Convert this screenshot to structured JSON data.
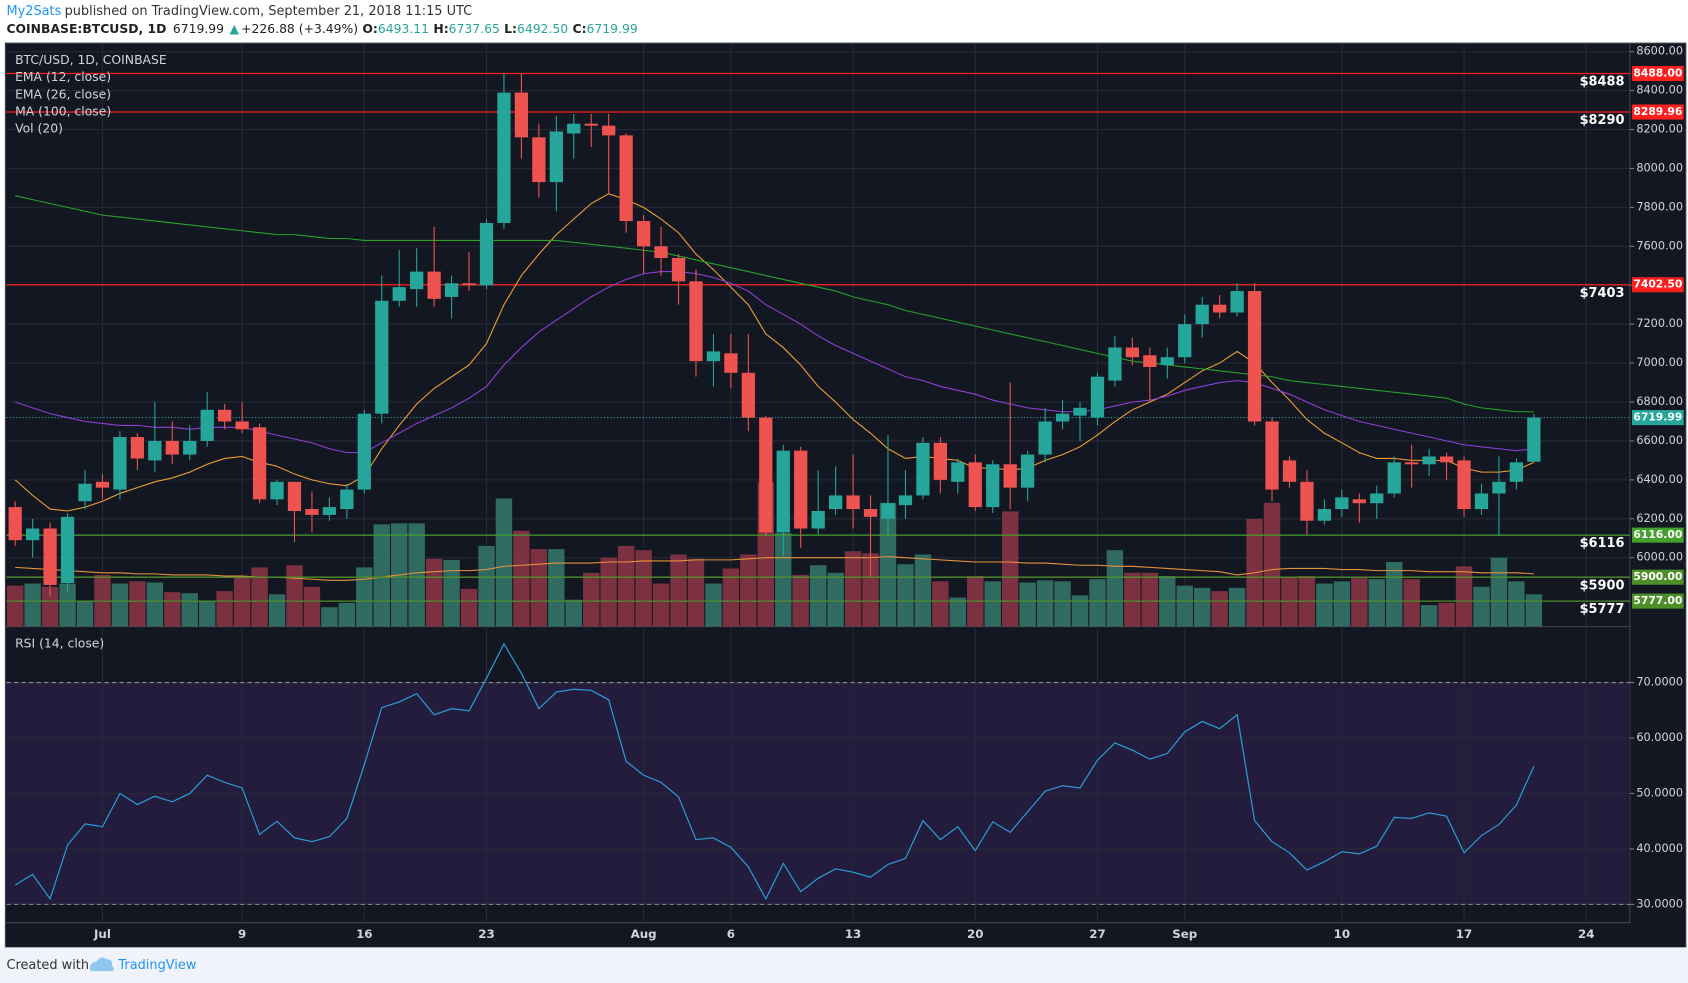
{
  "header": {
    "author": "My2Sats",
    "published": "published on TradingView.com, September 21, 2018 11:15 UTC",
    "symbol": "COINBASE:BTCUSD, 1D",
    "last": "6719.99",
    "arrow": "▲",
    "change": "+226.88 (+3.49%)",
    "o_label": "O:",
    "open": "6493.11",
    "h_label": "H:",
    "high": "6737.65",
    "l_label": "L:",
    "low": "6492.50",
    "c_label": "C:",
    "close": "6719.99"
  },
  "footer": {
    "created": "Created with",
    "brand": "TradingView"
  },
  "chart_data": {
    "type": "candlestick",
    "name": "BTC/USD, 1D, COINBASE",
    "up_color": "#26a69a",
    "down_color": "#ef5350",
    "categories": [
      null,
      null,
      null,
      null,
      null,
      "Jul",
      null,
      null,
      null,
      null,
      null,
      null,
      null,
      "9",
      null,
      null,
      null,
      null,
      null,
      null,
      "16",
      null,
      null,
      null,
      null,
      null,
      null,
      "23",
      null,
      null,
      null,
      null,
      null,
      null,
      null,
      null,
      "Aug",
      null,
      null,
      null,
      null,
      "6",
      null,
      null,
      null,
      null,
      null,
      null,
      "13",
      null,
      null,
      null,
      null,
      null,
      null,
      "20",
      null,
      null,
      null,
      null,
      null,
      null,
      "27",
      null,
      null,
      null,
      null,
      "Sep",
      null,
      null,
      null,
      null,
      null,
      null,
      null,
      null,
      "10",
      null,
      null,
      null,
      null,
      null,
      null,
      "17",
      null,
      null,
      null,
      null,
      null,
      null,
      "24",
      null,
      null
    ],
    "open": [
      6260,
      6090,
      6150,
      5870,
      6290,
      6390,
      6350,
      6620,
      6500,
      6600,
      6530,
      6600,
      6760,
      6700,
      6670,
      6300,
      6390,
      6250,
      6220,
      6250,
      6350,
      6740,
      7320,
      7380,
      7470,
      7340,
      7410,
      7400,
      7720,
      8390,
      8160,
      7930,
      8180,
      8230,
      8220,
      8170,
      7730,
      7600,
      7540,
      7420,
      7010,
      7050,
      6950,
      6720,
      6130,
      6550,
      6150,
      6250,
      6320,
      6250,
      6200,
      6270,
      6320,
      6590,
      6390,
      6490,
      6260,
      6480,
      6360,
      6530,
      6700,
      6730,
      6720,
      6910,
      7080,
      7040,
      6990,
      7030,
      7200,
      7300,
      7260,
      7370,
      6700,
      6500,
      6390,
      6190,
      6250,
      6300,
      6280,
      6330,
      6490,
      6480,
      6520,
      6500,
      6250,
      6330,
      6390,
      6493.11,
      null,
      null,
      null,
      null,
      null
    ],
    "high": [
      6290,
      6200,
      6180,
      6230,
      6450,
      6430,
      6650,
      6640,
      6800,
      6700,
      6680,
      6850,
      6790,
      6800,
      6690,
      6400,
      6390,
      6340,
      6310,
      6380,
      6760,
      7450,
      7580,
      7590,
      7700,
      7450,
      7570,
      7740,
      8490,
      8490,
      8230,
      8270,
      8280,
      8280,
      8280,
      8180,
      7760,
      7700,
      7560,
      7480,
      7150,
      7150,
      7150,
      6730,
      6580,
      6570,
      6450,
      6470,
      6530,
      6320,
      6630,
      6450,
      6620,
      6620,
      6510,
      6530,
      6500,
      6900,
      6550,
      6770,
      6810,
      6800,
      6950,
      7140,
      7130,
      7080,
      7080,
      7250,
      7340,
      7350,
      7410,
      7410,
      6720,
      6520,
      6450,
      6300,
      6350,
      6330,
      6370,
      6520,
      6580,
      6560,
      6540,
      6520,
      6380,
      6520,
      6510,
      6737.65,
      null,
      null,
      null,
      null,
      null
    ],
    "low": [
      6060,
      6000,
      5800,
      5820,
      6250,
      6300,
      6300,
      6450,
      6440,
      6480,
      6500,
      6570,
      6660,
      6640,
      6280,
      6270,
      6080,
      6130,
      6190,
      6200,
      6330,
      6690,
      7290,
      7290,
      7290,
      7230,
      7370,
      7380,
      7690,
      8050,
      7850,
      7780,
      8050,
      8110,
      7870,
      7670,
      7460,
      7450,
      7300,
      6930,
      6880,
      6870,
      6650,
      6110,
      6010,
      6050,
      6120,
      6220,
      6150,
      5900,
      6120,
      6200,
      6300,
      6330,
      6330,
      6240,
      6230,
      6250,
      6290,
      6490,
      6660,
      6600,
      6680,
      6880,
      6990,
      6800,
      6920,
      7000,
      7130,
      7230,
      7240,
      6680,
      6290,
      6360,
      6120,
      6170,
      6210,
      6180,
      6200,
      6310,
      6360,
      6420,
      6400,
      6210,
      6220,
      6110,
      6350,
      6492.5,
      null,
      null,
      null,
      null,
      null
    ],
    "close": [
      6090,
      6150,
      5860,
      6210,
      6380,
      6360,
      6620,
      6510,
      6600,
      6530,
      6600,
      6760,
      6700,
      6660,
      6300,
      6390,
      6240,
      6220,
      6260,
      6350,
      6740,
      7320,
      7390,
      7470,
      7330,
      7410,
      7400,
      7720,
      8390,
      8160,
      7930,
      8190,
      8230,
      8220,
      8170,
      7730,
      7600,
      7540,
      7420,
      7010,
      7060,
      6950,
      6720,
      6130,
      6550,
      6150,
      6240,
      6320,
      6250,
      6210,
      6280,
      6320,
      6590,
      6400,
      6490,
      6260,
      6480,
      6360,
      6530,
      6700,
      6740,
      6770,
      6930,
      7080,
      7030,
      6980,
      7030,
      7200,
      7300,
      7260,
      7370,
      6700,
      6350,
      6390,
      6190,
      6250,
      6310,
      6280,
      6330,
      6490,
      6480,
      6520,
      6490,
      6250,
      6330,
      6390,
      6490,
      6719.99,
      null,
      null,
      null,
      null,
      null
    ],
    "series": [
      {
        "name": "EMA (12, close)",
        "color": "#f0a030",
        "values": [
          6400,
          6320,
          6250,
          6240,
          6260,
          6290,
          6330,
          6360,
          6390,
          6410,
          6440,
          6480,
          6510,
          6520,
          6490,
          6470,
          6430,
          6400,
          6380,
          6370,
          6420,
          6560,
          6680,
          6790,
          6870,
          6930,
          6990,
          7100,
          7300,
          7450,
          7560,
          7660,
          7740,
          7820,
          7870,
          7840,
          7800,
          7740,
          7670,
          7560,
          7480,
          7390,
          7300,
          7150,
          7080,
          6990,
          6880,
          6800,
          6710,
          6640,
          6560,
          6510,
          6520,
          6510,
          6500,
          6460,
          6460,
          6450,
          6460,
          6500,
          6530,
          6570,
          6630,
          6700,
          6760,
          6800,
          6840,
          6900,
          6960,
          7000,
          7060,
          7000,
          6900,
          6810,
          6710,
          6640,
          6590,
          6540,
          6510,
          6510,
          6500,
          6500,
          6500,
          6460,
          6440,
          6440,
          6450,
          6490,
          null,
          null,
          null,
          null,
          null
        ]
      },
      {
        "name": "EMA (26, close)",
        "color": "#8e3fd8",
        "values": [
          6800,
          6770,
          6740,
          6720,
          6700,
          6690,
          6680,
          6680,
          6670,
          6670,
          6660,
          6670,
          6670,
          6670,
          6650,
          6630,
          6610,
          6590,
          6560,
          6540,
          6540,
          6590,
          6640,
          6690,
          6730,
          6770,
          6820,
          6880,
          6990,
          7080,
          7160,
          7220,
          7280,
          7340,
          7390,
          7430,
          7460,
          7470,
          7470,
          7460,
          7440,
          7410,
          7370,
          7300,
          7250,
          7200,
          7140,
          7090,
          7050,
          7010,
          6970,
          6930,
          6910,
          6880,
          6860,
          6840,
          6810,
          6790,
          6770,
          6760,
          6750,
          6750,
          6760,
          6780,
          6800,
          6810,
          6830,
          6860,
          6880,
          6900,
          6910,
          6900,
          6870,
          6840,
          6800,
          6760,
          6730,
          6700,
          6680,
          6660,
          6640,
          6620,
          6600,
          6580,
          6570,
          6560,
          6550,
          6560,
          null,
          null,
          null,
          null,
          null
        ]
      },
      {
        "name": "MA (100, close)",
        "color": "#27a32a",
        "values": [
          7860,
          7840,
          7820,
          7800,
          7780,
          7760,
          7750,
          7740,
          7730,
          7720,
          7710,
          7700,
          7690,
          7680,
          7670,
          7660,
          7660,
          7650,
          7640,
          7640,
          7630,
          7630,
          7630,
          7630,
          7630,
          7630,
          7630,
          7630,
          7630,
          7630,
          7630,
          7630,
          7620,
          7610,
          7600,
          7590,
          7580,
          7570,
          7550,
          7530,
          7510,
          7490,
          7470,
          7450,
          7430,
          7410,
          7390,
          7370,
          7340,
          7320,
          7300,
          7270,
          7250,
          7230,
          7210,
          7190,
          7170,
          7150,
          7130,
          7110,
          7090,
          7070,
          7050,
          7030,
          7010,
          7000,
          6990,
          6980,
          6970,
          6960,
          6950,
          6940,
          6930,
          6910,
          6900,
          6890,
          6880,
          6870,
          6860,
          6850,
          6840,
          6830,
          6820,
          6790,
          6770,
          6760,
          6750,
          6750,
          null,
          null,
          null,
          null,
          null
        ]
      }
    ],
    "volume": {
      "name": "Vol (20)",
      "up_color": "#2f6b61",
      "down_color": "#7b3140",
      "ma_color": "#e8923a",
      "values": [
        38,
        40,
        37,
        40,
        24,
        48,
        40,
        42,
        41,
        32,
        31,
        24,
        33,
        46,
        55,
        30,
        57,
        37,
        18,
        22,
        55,
        95,
        96,
        96,
        63,
        62,
        35,
        75,
        119,
        89,
        72,
        72,
        25,
        50,
        64,
        75,
        71,
        40,
        67,
        63,
        40,
        54,
        67,
        134,
        87,
        48,
        57,
        50,
        70,
        68,
        115,
        58,
        67,
        42,
        27,
        47,
        42,
        107,
        41,
        43,
        42,
        29,
        44,
        71,
        50,
        50,
        47,
        38,
        36,
        33,
        36,
        100,
        115,
        46,
        47,
        40,
        42,
        45,
        44,
        60,
        44,
        20,
        22,
        56,
        37,
        64,
        42,
        30,
        null,
        null,
        null,
        null,
        null
      ],
      "ma": [
        55,
        54,
        53,
        52,
        51,
        50,
        50,
        49,
        49,
        48,
        48,
        48,
        47,
        47,
        46,
        46,
        45,
        44,
        43,
        43,
        44,
        46,
        48,
        50,
        51,
        52,
        52,
        53,
        56,
        57,
        58,
        59,
        59,
        59,
        60,
        60,
        61,
        61,
        61,
        62,
        62,
        62,
        63,
        64,
        64,
        64,
        64,
        64,
        64,
        64,
        65,
        64,
        63,
        62,
        61,
        60,
        60,
        60,
        59,
        59,
        58,
        57,
        57,
        56,
        56,
        55,
        54,
        53,
        52,
        51,
        48,
        50,
        53,
        54,
        54,
        54,
        53,
        53,
        52,
        52,
        52,
        51,
        51,
        51,
        50,
        50,
        50,
        49,
        null,
        null,
        null,
        null,
        null
      ]
    },
    "ylim": [
      5646,
      8644
    ],
    "yticks": [
      {
        "value": 8600,
        "label": "8600.00"
      },
      {
        "value": 8400,
        "label": "8400.00"
      },
      {
        "value": 8200,
        "label": "8200.00"
      },
      {
        "value": 8000,
        "label": "8000.00"
      },
      {
        "value": 7800,
        "label": "7800.00"
      },
      {
        "value": 7600,
        "label": "7600.00"
      },
      {
        "value": 7400,
        "label": "7400.00"
      },
      {
        "value": 7200,
        "label": "7200.00"
      },
      {
        "value": 7000,
        "label": "7000.00"
      },
      {
        "value": 6800,
        "label": "6800.00"
      },
      {
        "value": 6600,
        "label": "6600.00"
      },
      {
        "value": 6400,
        "label": "6400.00"
      },
      {
        "value": 6200,
        "label": "6200.00"
      },
      {
        "value": 6000,
        "label": "6000.00"
      }
    ],
    "grid": true,
    "levels": [
      {
        "value": 8488,
        "label": "$8488",
        "tag": "8488.00",
        "color": "#ff1f1f"
      },
      {
        "value": 8289.96,
        "label": "$8290",
        "tag": "8289.96",
        "color": "#ff1f1f"
      },
      {
        "value": 7402.5,
        "label": "$7403",
        "tag": "7402.50",
        "color": "#ff1f1f"
      },
      {
        "value": 6116,
        "label": "$6116",
        "tag": "6116.00",
        "color": "#43a02c"
      },
      {
        "value": 5900,
        "label": "$5900",
        "tag": "5900.00",
        "color": "#4f8f2a"
      },
      {
        "value": 5777,
        "label": "$5777",
        "tag": "5777.00",
        "color": "#4f8f2a"
      }
    ],
    "last": {
      "value": 6719.99,
      "color": "#26a69a"
    },
    "rsi": {
      "name": "RSI (14, close)",
      "color": "#2a9fd6",
      "band_color": "#241c3d",
      "band": [
        30,
        70
      ],
      "values": [
        33.5,
        35.4,
        31,
        40.7,
        44.5,
        44,
        50,
        48,
        49.5,
        48.5,
        50,
        53.3,
        52,
        51,
        42.6,
        45,
        42,
        41.3,
        42.2,
        45.5,
        55.2,
        65.5,
        66.5,
        68,
        64.2,
        65.3,
        64.9,
        70.8,
        77,
        71.7,
        65.3,
        68.3,
        68.8,
        68.6,
        66.9,
        55.8,
        53.3,
        52,
        49.4,
        41.7,
        42,
        40.3,
        36.8,
        31,
        37.4,
        32.3,
        34.7,
        36.4,
        35.8,
        34.9,
        37.2,
        38.3,
        45.1,
        41.7,
        44,
        39.7,
        44.9,
        43,
        46.7,
        50.4,
        51.4,
        51,
        56,
        59.1,
        57.8,
        56.2,
        57.2,
        61.1,
        63,
        61.7,
        64.2,
        45.1,
        41.3,
        39.3,
        36.2,
        37.7,
        39.5,
        39.1,
        40.5,
        45.7,
        45.5,
        46.5,
        45.9,
        39.3,
        42.4,
        44.4,
        47.9,
        54.9,
        null,
        null,
        null,
        null,
        null
      ],
      "ylim": [
        26.7,
        80.1
      ],
      "yticks": [
        {
          "value": 70,
          "label": "70.0000"
        },
        {
          "value": 60,
          "label": "60.0000"
        },
        {
          "value": 50,
          "label": "50.0000"
        },
        {
          "value": 40,
          "label": "40.0000"
        },
        {
          "value": 30,
          "label": "30.0000"
        }
      ]
    }
  }
}
